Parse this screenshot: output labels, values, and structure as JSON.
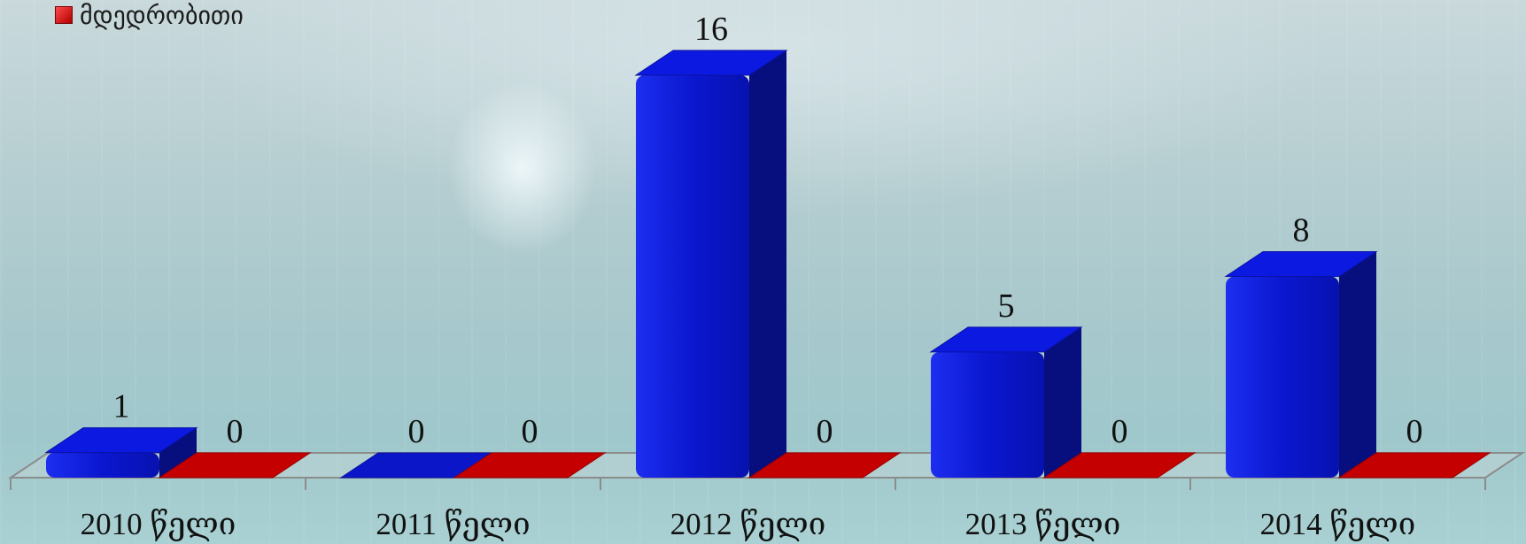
{
  "chart_data": {
    "type": "bar",
    "categories": [
      "2010 წელი",
      "2011 წელი",
      "2012 წელი",
      "2013 წელი",
      "2014 წელი"
    ],
    "series": [
      {
        "values": [
          1,
          0,
          16,
          5,
          8
        ],
        "color": "#0b16c9"
      },
      {
        "name": "მდედრობითი",
        "values": [
          0,
          0,
          0,
          0,
          0
        ],
        "color": "#c40000"
      }
    ],
    "ylim": [
      0,
      16
    ],
    "grid": false,
    "legend": "top-left"
  }
}
